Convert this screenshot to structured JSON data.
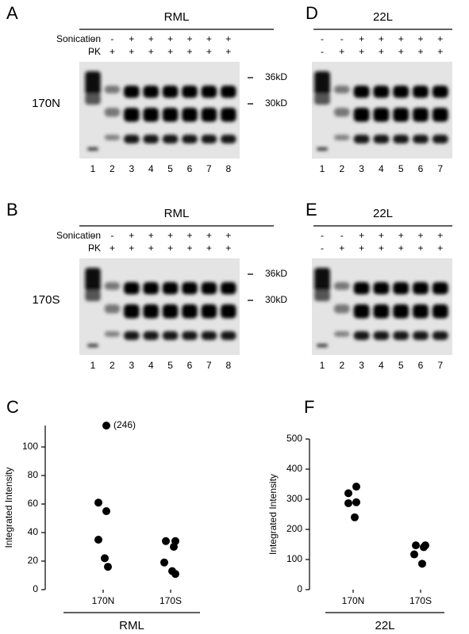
{
  "panels": [
    {
      "letter": "A",
      "strain": "RML",
      "sonication_label": "Sonication",
      "pk_label": "PK",
      "sonication": [
        "-",
        "-",
        "+",
        "+",
        "+",
        "+",
        "+",
        "+"
      ],
      "pk": [
        "-",
        "+",
        "+",
        "+",
        "+",
        "+",
        "+",
        "+"
      ],
      "lanes": [
        "1",
        "2",
        "3",
        "4",
        "5",
        "6",
        "7",
        "8"
      ],
      "sample": "170N",
      "markers": [
        "36kD",
        "30kD"
      ]
    },
    {
      "letter": "D",
      "strain": "22L",
      "sonication": [
        "-",
        "-",
        "+",
        "+",
        "+",
        "+",
        "+"
      ],
      "pk": [
        "-",
        "+",
        "+",
        "+",
        "+",
        "+",
        "+"
      ],
      "lanes": [
        "1",
        "2",
        "3",
        "4",
        "5",
        "6",
        "7"
      ]
    },
    {
      "letter": "B",
      "strain": "RML",
      "sonication_label": "Sonication",
      "pk_label": "PK",
      "sonication": [
        "-",
        "-",
        "+",
        "+",
        "+",
        "+",
        "+",
        "+"
      ],
      "pk": [
        "-",
        "+",
        "+",
        "+",
        "+",
        "+",
        "+",
        "+"
      ],
      "lanes": [
        "1",
        "2",
        "3",
        "4",
        "5",
        "6",
        "7",
        "8"
      ],
      "sample": "170S",
      "markers": [
        "36kD",
        "30kD"
      ]
    },
    {
      "letter": "E",
      "strain": "22L",
      "sonication": [
        "-",
        "-",
        "+",
        "+",
        "+",
        "+",
        "+"
      ],
      "pk": [
        "-",
        "+",
        "+",
        "+",
        "+",
        "+",
        "+"
      ],
      "lanes": [
        "1",
        "2",
        "3",
        "4",
        "5",
        "6",
        "7"
      ]
    }
  ],
  "chart_data": [
    {
      "type": "scatter",
      "letter": "C",
      "y_label": "Integrated Intensity",
      "x_label": "RML",
      "categories": [
        "170N",
        "170S"
      ],
      "series": [
        {
          "values": [
            246,
            61,
            55,
            35,
            22,
            16
          ],
          "value_labels": [
            "(246)",
            null,
            null,
            null,
            null,
            null
          ],
          "color": "#000000"
        },
        {
          "values": [
            34,
            34,
            30,
            19,
            13,
            11
          ],
          "color": "#000000"
        }
      ],
      "ylim": [
        0,
        115
      ],
      "yticks": [
        0,
        20,
        40,
        60,
        80,
        100
      ]
    },
    {
      "type": "scatter",
      "letter": "F",
      "y_label": "Integrated Intensity",
      "x_label": "22L",
      "categories": [
        "170N",
        "170S"
      ],
      "series": [
        {
          "values": [
            342,
            320,
            290,
            287,
            240
          ],
          "color": "#000000"
        },
        {
          "values": [
            147,
            147,
            141,
            117,
            86
          ],
          "color": "#000000"
        }
      ],
      "ylim": [
        0,
        500
      ],
      "yticks": [
        0,
        100,
        200,
        300,
        400,
        500
      ]
    }
  ]
}
